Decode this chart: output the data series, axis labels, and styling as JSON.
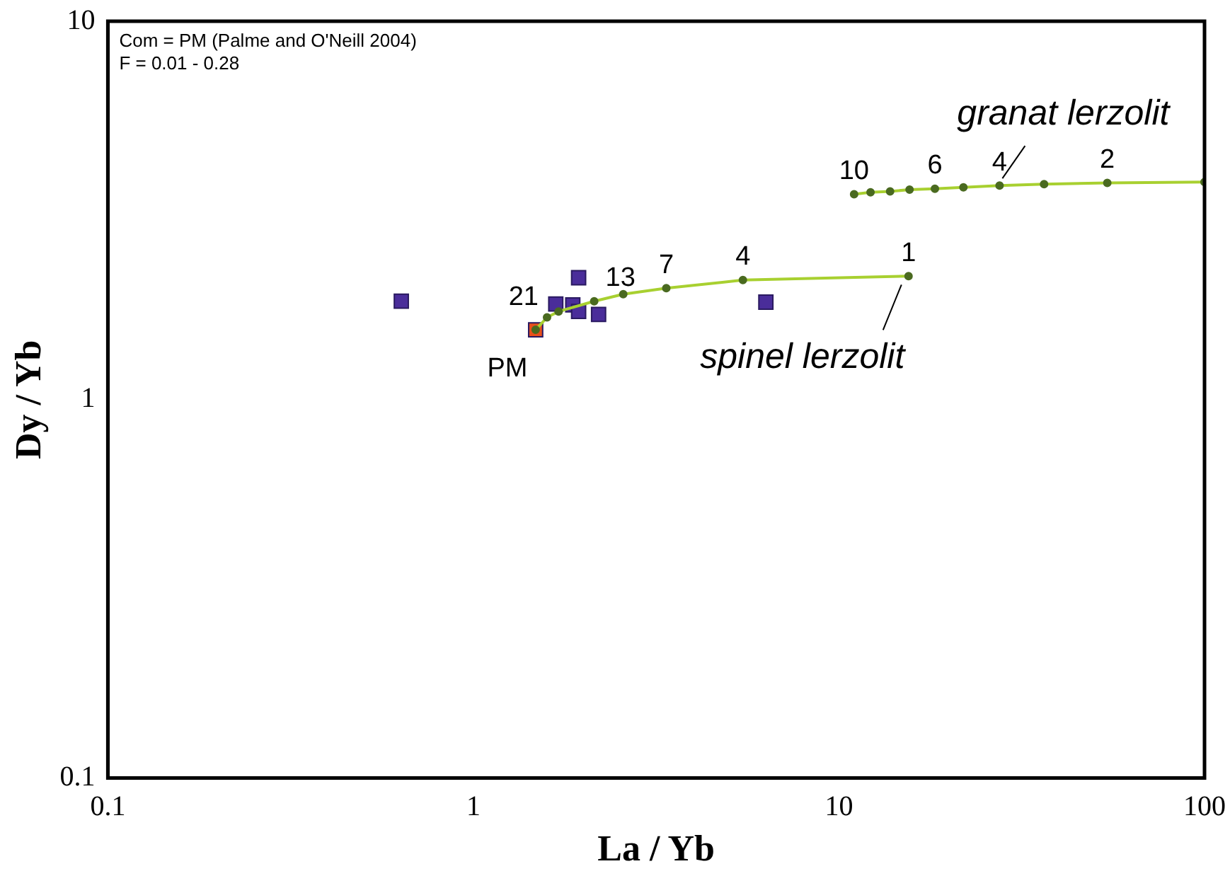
{
  "chart_data": {
    "type": "scatter",
    "xlabel": "La / Yb",
    "ylabel": "Dy / Yb",
    "log": "xy",
    "grid": false,
    "legend": false,
    "xlim": [
      0.1,
      100
    ],
    "xticks": [
      0.1,
      1,
      10,
      100
    ],
    "ylim": [
      0.1,
      10
    ],
    "yticks": [
      0.1,
      1,
      10
    ],
    "series": [
      {
        "type": "line",
        "color": "#a8d030",
        "marker": "circle",
        "x": [
          1.48,
          1.59,
          1.71,
          2.14,
          2.57,
          3.37,
          5.46,
          15.5
        ],
        "values": [
          1.53,
          1.65,
          1.71,
          1.82,
          1.9,
          1.97,
          2.07,
          2.12
        ]
      },
      {
        "type": "line",
        "color": "#a8d030",
        "marker": "circle",
        "x": [
          11.0,
          12.2,
          13.8,
          15.6,
          18.3,
          21.9,
          27.5,
          36.4,
          54.2,
          100
        ],
        "values": [
          3.49,
          3.53,
          3.55,
          3.59,
          3.61,
          3.64,
          3.68,
          3.71,
          3.74,
          3.76
        ]
      },
      {
        "color": "#4a2d9a",
        "marker": "square",
        "x": [
          0.635,
          1.68,
          1.87,
          1.94,
          1.94,
          2.2,
          6.31
        ],
        "values": [
          1.82,
          1.79,
          1.78,
          2.1,
          1.71,
          1.68,
          1.81
        ]
      },
      {
        "color": "#e8501c",
        "marker": "square",
        "x": [
          1.48
        ],
        "values": [
          1.53
        ]
      }
    ],
    "annotations": [
      "Com = PM (Palme and O'Neill 2004)",
      "F = 0.01 - 0.28",
      {
        "text": "granat lerzolit",
        "x": 27.5,
        "y": 3.68
      },
      {
        "text": "spinel lerzolit",
        "x": 15.5,
        "y": 2.12
      },
      {
        "text": "PM",
        "x": 1.48,
        "y": 1.53
      },
      {
        "text": "21",
        "x": 1.59,
        "y": 1.65
      },
      {
        "text": "13",
        "x": 2.14,
        "y": 1.82
      },
      {
        "text": "7",
        "x": 3.37,
        "y": 1.97
      },
      {
        "text": "4",
        "x": 5.46,
        "y": 2.07
      },
      {
        "text": "1",
        "x": 15.5,
        "y": 2.12
      },
      {
        "text": "10",
        "x": 11.0,
        "y": 3.49
      },
      {
        "text": "6",
        "x": 18.3,
        "y": 3.61
      },
      {
        "text": "4",
        "x": 27.5,
        "y": 3.68
      },
      {
        "text": "2",
        "x": 54.2,
        "y": 3.74
      }
    ]
  }
}
